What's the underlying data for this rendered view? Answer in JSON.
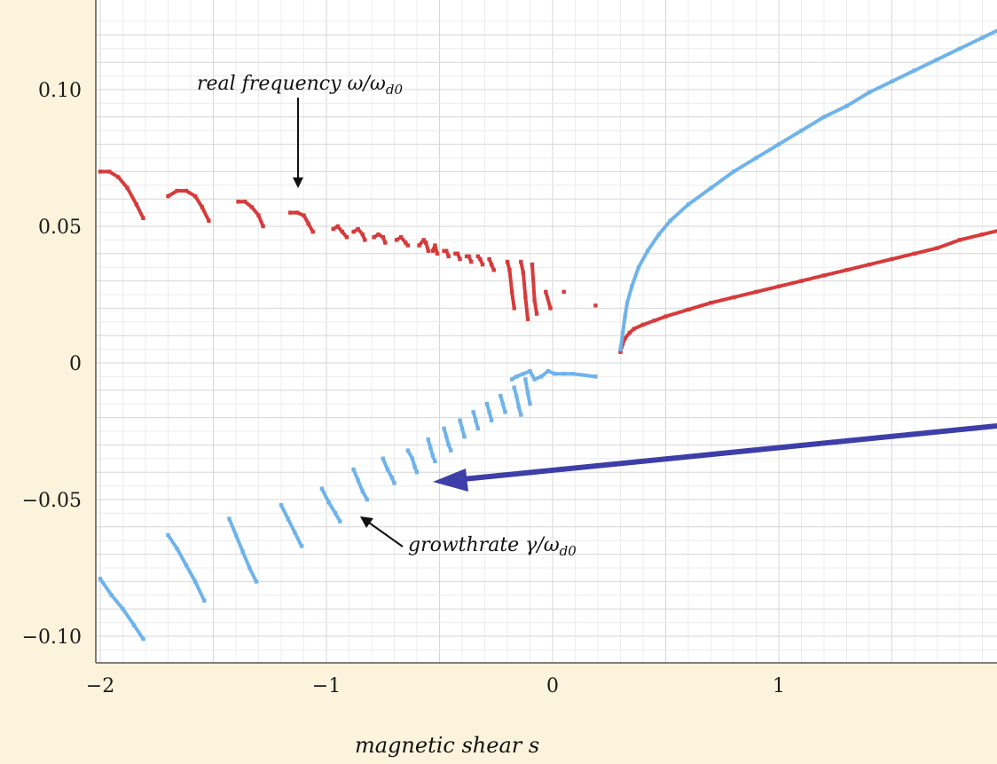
{
  "colors": {
    "background": "#fcf3dc",
    "plot_bg": "#ffffff",
    "grid_major": "#d6d6d6",
    "grid_minor": "#ececec",
    "real_frequency": "#d63b3b",
    "growthrate": "#6fb3ea",
    "arrow_highlight": "#3e3ea8",
    "arrow_black": "#111111"
  },
  "annotations": {
    "real_frequency_main": "real  frequency ω/ω",
    "real_frequency_sub": "d0",
    "growthrate_main": "growthrate  γ/ω",
    "growthrate_sub": "d0"
  },
  "chart_data": {
    "type": "scatter",
    "title": "",
    "xlabel": "magnetic   shear s",
    "ylabel": "",
    "xlim": [
      -2.0,
      2.0
    ],
    "ylim": [
      -0.105,
      0.125
    ],
    "x_ticks": [
      -2,
      -1,
      0,
      1,
      2
    ],
    "x_tick_labels": [
      "−2",
      "−1",
      "0",
      "1",
      "2"
    ],
    "y_ticks": [
      -0.1,
      -0.05,
      0,
      0.05,
      0.1
    ],
    "y_tick_labels": [
      "−0.10",
      "−0.05",
      "0",
      "0.05",
      "0.10"
    ],
    "grid": true,
    "series": [
      {
        "key": "real_frequency",
        "color": "#d63b3b",
        "segments": [
          [
            [
              -2.0,
              0.07
            ],
            [
              -1.96,
              0.07
            ],
            [
              -1.92,
              0.068
            ],
            [
              -1.88,
              0.064
            ],
            [
              -1.84,
              0.058
            ],
            [
              -1.81,
              0.053
            ]
          ],
          [
            [
              -1.7,
              0.061
            ],
            [
              -1.66,
              0.063
            ],
            [
              -1.62,
              0.063
            ],
            [
              -1.58,
              0.061
            ],
            [
              -1.55,
              0.057
            ],
            [
              -1.52,
              0.052
            ]
          ],
          [
            [
              -1.39,
              0.059
            ],
            [
              -1.36,
              0.059
            ],
            [
              -1.33,
              0.057
            ],
            [
              -1.3,
              0.054
            ],
            [
              -1.28,
              0.05
            ]
          ],
          [
            [
              -1.16,
              0.055
            ],
            [
              -1.13,
              0.055
            ],
            [
              -1.1,
              0.054
            ],
            [
              -1.08,
              0.051
            ],
            [
              -1.06,
              0.048
            ]
          ],
          [
            [
              -0.97,
              0.049
            ],
            [
              -0.95,
              0.05
            ],
            [
              -0.93,
              0.048
            ],
            [
              -0.91,
              0.046
            ]
          ],
          [
            [
              -0.88,
              0.048
            ],
            [
              -0.86,
              0.049
            ],
            [
              -0.84,
              0.047
            ],
            [
              -0.83,
              0.045
            ]
          ],
          [
            [
              -0.79,
              0.046
            ],
            [
              -0.77,
              0.047
            ],
            [
              -0.75,
              0.046
            ],
            [
              -0.74,
              0.044
            ]
          ],
          [
            [
              -0.69,
              0.045
            ],
            [
              -0.67,
              0.046
            ],
            [
              -0.65,
              0.044
            ],
            [
              -0.64,
              0.043
            ]
          ],
          [
            [
              -0.59,
              0.043
            ],
            [
              -0.57,
              0.045
            ],
            [
              -0.56,
              0.044
            ],
            [
              -0.55,
              0.041
            ]
          ],
          [
            [
              -0.53,
              0.041
            ],
            [
              -0.52,
              0.043
            ],
            [
              -0.51,
              0.04
            ]
          ],
          [
            [
              -0.48,
              0.041
            ],
            [
              -0.47,
              0.041
            ],
            [
              -0.46,
              0.039
            ]
          ],
          [
            [
              -0.43,
              0.04
            ],
            [
              -0.42,
              0.04
            ],
            [
              -0.41,
              0.038
            ]
          ],
          [
            [
              -0.38,
              0.039
            ],
            [
              -0.37,
              0.039
            ],
            [
              -0.36,
              0.037
            ]
          ],
          [
            [
              -0.33,
              0.039
            ],
            [
              -0.32,
              0.038
            ],
            [
              -0.31,
              0.036
            ]
          ],
          [
            [
              -0.28,
              0.038
            ],
            [
              -0.27,
              0.036
            ],
            [
              -0.26,
              0.034
            ]
          ],
          [
            [
              -0.2,
              0.037
            ],
            [
              -0.19,
              0.034
            ],
            [
              -0.18,
              0.026
            ],
            [
              -0.17,
              0.02
            ]
          ],
          [
            [
              -0.14,
              0.037
            ],
            [
              -0.13,
              0.033
            ],
            [
              -0.12,
              0.024
            ],
            [
              -0.11,
              0.016
            ]
          ],
          [
            [
              -0.09,
              0.036
            ],
            [
              -0.08,
              0.023
            ],
            [
              -0.07,
              0.018
            ]
          ],
          [
            [
              -0.03,
              0.026
            ],
            [
              -0.01,
              0.02
            ]
          ],
          [
            [
              0.05,
              0.026
            ]
          ],
          [
            [
              0.19,
              0.021
            ]
          ],
          [
            [
              0.3,
              0.004
            ],
            [
              0.31,
              0.007
            ],
            [
              0.32,
              0.009
            ],
            [
              0.34,
              0.011
            ],
            [
              0.36,
              0.0125
            ],
            [
              0.4,
              0.014
            ],
            [
              0.45,
              0.0155
            ],
            [
              0.5,
              0.017
            ],
            [
              0.6,
              0.0195
            ],
            [
              0.7,
              0.022
            ],
            [
              0.8,
              0.024
            ],
            [
              0.9,
              0.026
            ],
            [
              1.0,
              0.028
            ],
            [
              1.1,
              0.03
            ],
            [
              1.2,
              0.032
            ],
            [
              1.3,
              0.034
            ],
            [
              1.4,
              0.036
            ],
            [
              1.5,
              0.038
            ],
            [
              1.6,
              0.04
            ],
            [
              1.7,
              0.042
            ],
            [
              1.8,
              0.045
            ],
            [
              1.9,
              0.047
            ],
            [
              2.0,
              0.049
            ],
            [
              2.1,
              0.052
            ],
            [
              2.2,
              0.055
            ],
            [
              2.28,
              0.057
            ]
          ]
        ]
      },
      {
        "key": "growthrate",
        "color": "#6fb3ea",
        "segments": [
          [
            [
              -2.0,
              -0.079
            ],
            [
              -1.95,
              -0.085
            ],
            [
              -1.9,
              -0.09
            ],
            [
              -1.85,
              -0.096
            ],
            [
              -1.81,
              -0.101
            ]
          ],
          [
            [
              -1.7,
              -0.063
            ],
            [
              -1.66,
              -0.068
            ],
            [
              -1.62,
              -0.074
            ],
            [
              -1.58,
              -0.08
            ],
            [
              -1.54,
              -0.087
            ]
          ],
          [
            [
              -1.43,
              -0.057
            ],
            [
              -1.4,
              -0.063
            ],
            [
              -1.37,
              -0.069
            ],
            [
              -1.34,
              -0.075
            ],
            [
              -1.31,
              -0.08
            ]
          ],
          [
            [
              -1.2,
              -0.052
            ],
            [
              -1.17,
              -0.057
            ],
            [
              -1.14,
              -0.062
            ],
            [
              -1.11,
              -0.067
            ]
          ],
          [
            [
              -1.02,
              -0.046
            ],
            [
              -0.99,
              -0.051
            ],
            [
              -0.96,
              -0.055
            ],
            [
              -0.94,
              -0.058
            ]
          ],
          [
            [
              -0.88,
              -0.039
            ],
            [
              -0.86,
              -0.043
            ],
            [
              -0.84,
              -0.047
            ],
            [
              -0.82,
              -0.05
            ]
          ],
          [
            [
              -0.75,
              -0.035
            ],
            [
              -0.73,
              -0.039
            ],
            [
              -0.71,
              -0.042
            ],
            [
              -0.7,
              -0.044
            ]
          ],
          [
            [
              -0.64,
              -0.032
            ],
            [
              -0.62,
              -0.035
            ],
            [
              -0.61,
              -0.038
            ],
            [
              -0.6,
              -0.04
            ]
          ],
          [
            [
              -0.55,
              -0.028
            ],
            [
              -0.54,
              -0.031
            ],
            [
              -0.53,
              -0.034
            ],
            [
              -0.52,
              -0.036
            ]
          ],
          [
            [
              -0.48,
              -0.024
            ],
            [
              -0.47,
              -0.027
            ],
            [
              -0.46,
              -0.03
            ],
            [
              -0.45,
              -0.032
            ]
          ],
          [
            [
              -0.41,
              -0.021
            ],
            [
              -0.4,
              -0.024
            ],
            [
              -0.39,
              -0.027
            ]
          ],
          [
            [
              -0.35,
              -0.018
            ],
            [
              -0.34,
              -0.021
            ],
            [
              -0.33,
              -0.024
            ]
          ],
          [
            [
              -0.29,
              -0.015
            ],
            [
              -0.28,
              -0.018
            ],
            [
              -0.27,
              -0.021
            ]
          ],
          [
            [
              -0.23,
              -0.012
            ],
            [
              -0.22,
              -0.015
            ],
            [
              -0.21,
              -0.018
            ]
          ],
          [
            [
              -0.17,
              -0.009
            ],
            [
              -0.16,
              -0.012
            ],
            [
              -0.15,
              -0.016
            ],
            [
              -0.14,
              -0.019
            ]
          ],
          [
            [
              -0.12,
              -0.006
            ],
            [
              -0.11,
              -0.011
            ],
            [
              -0.1,
              -0.015
            ]
          ],
          [
            [
              -0.18,
              -0.006
            ],
            [
              -0.16,
              -0.005
            ],
            [
              -0.13,
              -0.004
            ],
            [
              -0.1,
              -0.003
            ],
            [
              -0.08,
              -0.006
            ],
            [
              -0.05,
              -0.005
            ],
            [
              -0.02,
              -0.003
            ],
            [
              0.01,
              -0.004
            ],
            [
              0.05,
              -0.004
            ],
            [
              0.09,
              -0.004
            ],
            [
              0.19,
              -0.005
            ]
          ],
          [
            [
              0.3,
              0.005
            ],
            [
              0.31,
              0.011
            ],
            [
              0.32,
              0.017
            ],
            [
              0.33,
              0.022
            ],
            [
              0.35,
              0.028
            ],
            [
              0.38,
              0.035
            ],
            [
              0.42,
              0.041
            ],
            [
              0.47,
              0.047
            ],
            [
              0.52,
              0.052
            ],
            [
              0.6,
              0.058
            ],
            [
              0.7,
              0.064
            ],
            [
              0.8,
              0.07
            ],
            [
              0.9,
              0.075
            ],
            [
              1.0,
              0.08
            ],
            [
              1.1,
              0.085
            ],
            [
              1.2,
              0.09
            ],
            [
              1.3,
              0.094
            ],
            [
              1.4,
              0.099
            ],
            [
              1.5,
              0.103
            ],
            [
              1.6,
              0.107
            ],
            [
              1.7,
              0.111
            ],
            [
              1.8,
              0.115
            ],
            [
              1.9,
              0.119
            ],
            [
              2.0,
              0.123
            ],
            [
              2.1,
              0.127
            ],
            [
              2.2,
              0.131
            ],
            [
              2.28,
              0.134
            ]
          ]
        ]
      }
    ]
  }
}
